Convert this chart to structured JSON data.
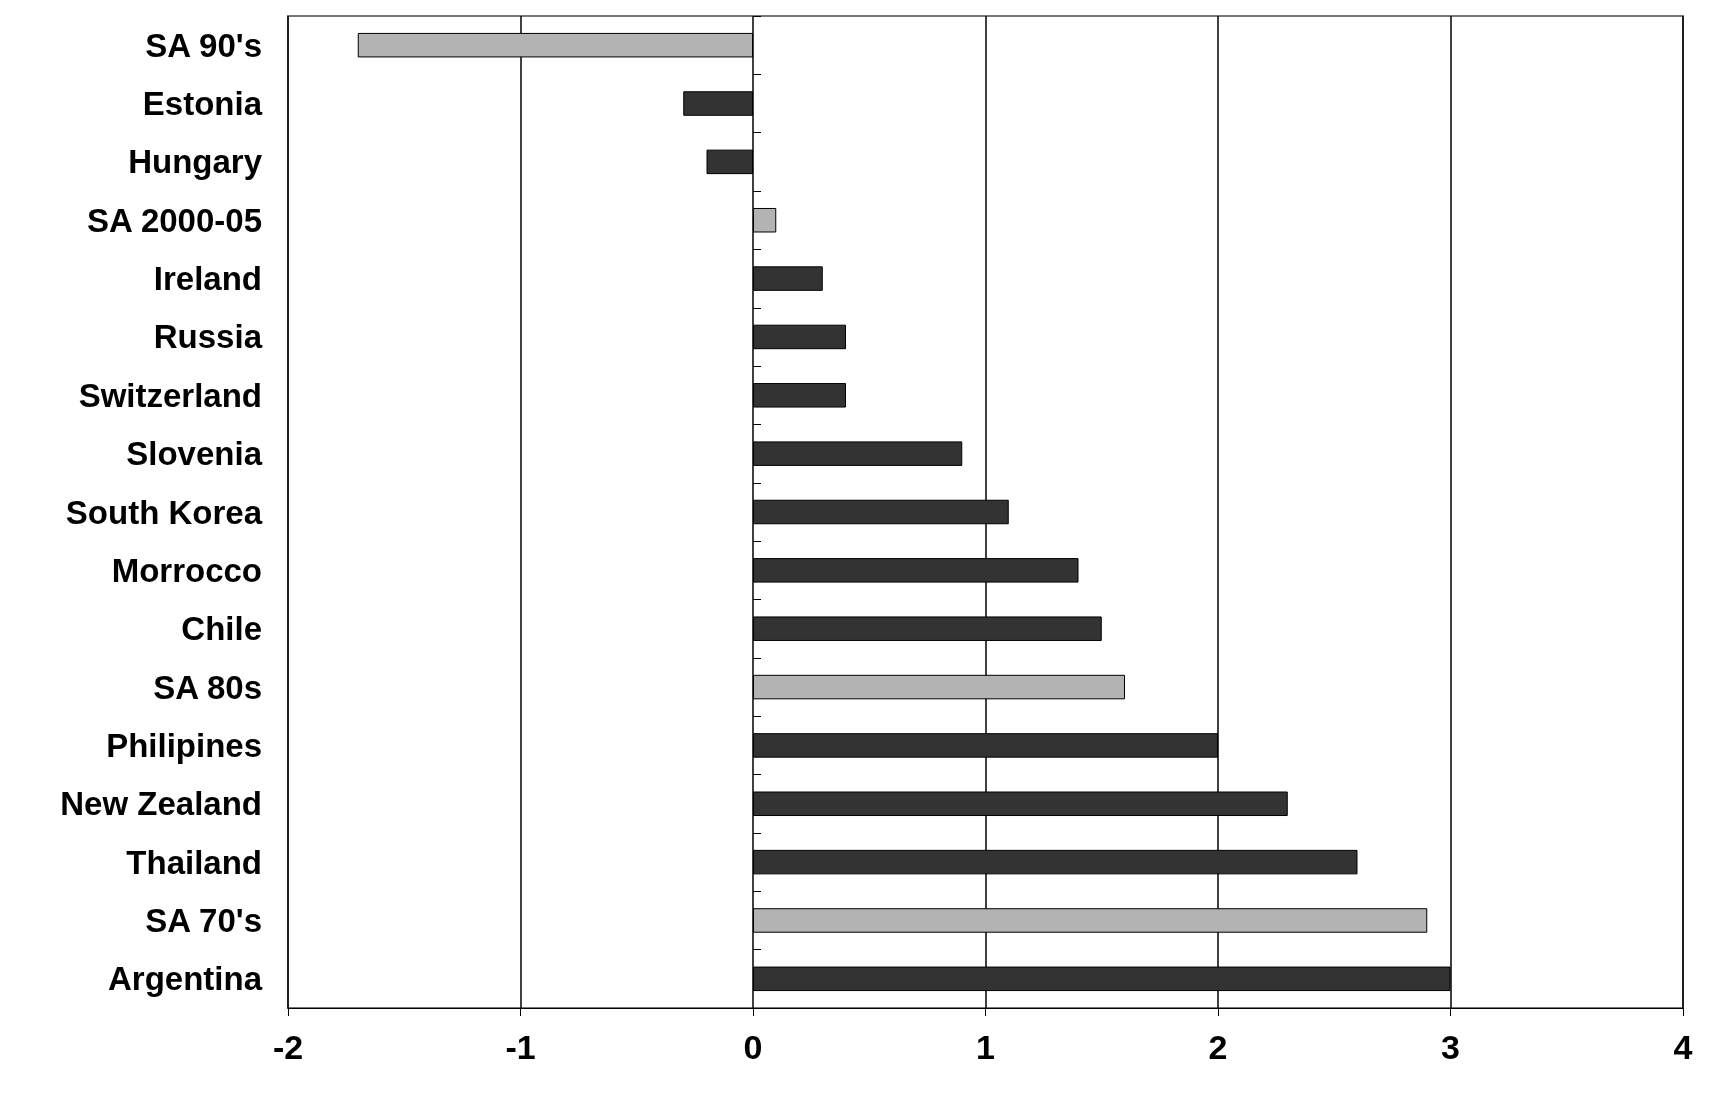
{
  "chart_data": {
    "type": "bar",
    "orientation": "horizontal",
    "categories": [
      "SA 90's",
      "Estonia",
      "Hungary",
      "SA 2000-05",
      "Ireland",
      "Russia",
      "Switzerland",
      "Slovenia",
      "South Korea",
      "Morrocco",
      "Chile",
      "SA 80s",
      "Philipines",
      "New Zealand",
      "Thailand",
      "SA 70's",
      "Argentina"
    ],
    "values": [
      -1.7,
      -0.3,
      -0.2,
      0.1,
      0.3,
      0.4,
      0.4,
      0.9,
      1.1,
      1.4,
      1.5,
      1.6,
      2.0,
      2.3,
      2.6,
      2.9,
      3.0
    ],
    "colors": [
      "#b3b3b3",
      "#333333",
      "#333333",
      "#b3b3b3",
      "#333333",
      "#333333",
      "#333333",
      "#333333",
      "#333333",
      "#333333",
      "#333333",
      "#b3b3b3",
      "#333333",
      "#333333",
      "#333333",
      "#b3b3b3",
      "#333333"
    ],
    "xlim": [
      -2,
      4
    ],
    "xticks": [
      -2,
      -1,
      0,
      1,
      2,
      3,
      4
    ],
    "grid": "x"
  }
}
